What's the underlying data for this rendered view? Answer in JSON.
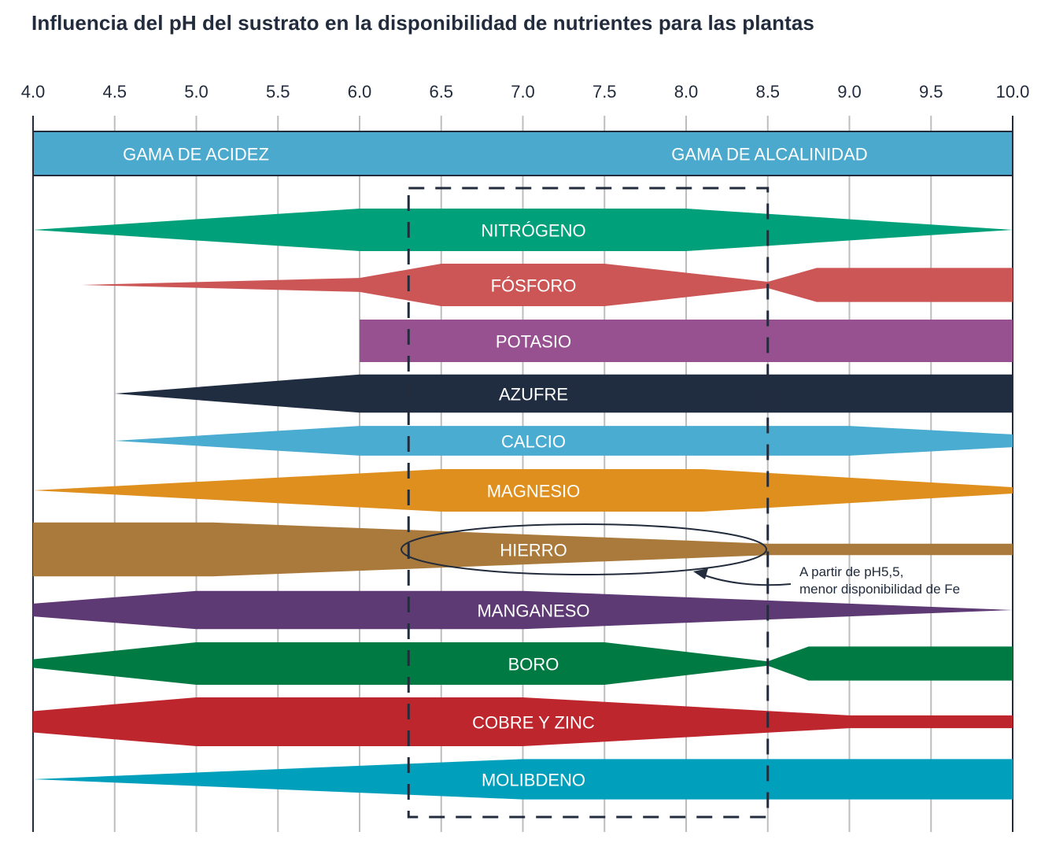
{
  "title": "Influencia del pH del sustrato en la disponibilidad de nutrientes para las plantas",
  "chart_data": {
    "type": "area",
    "xlabel": "",
    "ylabel": "",
    "xlim": [
      4.0,
      10.0
    ],
    "x_ticks": [
      "4.0",
      "4.5",
      "5.0",
      "5.5",
      "6.0",
      "6.5",
      "7.0",
      "7.5",
      "8.0",
      "8.5",
      "9.0",
      "9.5",
      "10.0"
    ],
    "grid": true,
    "ranges": [
      {
        "label": "GAMA DE ACIDEZ",
        "color": "#4aa9cc"
      },
      {
        "label": "GAMA DE ALCALINIDAD",
        "color": "#4aa9cc"
      }
    ],
    "optimal_range": [
      6.3,
      8.5
    ],
    "series": [
      {
        "name": "NITRÓGENO",
        "color": "#00a07a",
        "profile": [
          [
            4.0,
            0
          ],
          [
            6.0,
            1
          ],
          [
            8.0,
            1
          ],
          [
            10.0,
            0
          ]
        ]
      },
      {
        "name": "FÓSFORO",
        "color": "#cc5555",
        "profile": [
          [
            4.3,
            0
          ],
          [
            6.0,
            0.33
          ],
          [
            6.5,
            1
          ],
          [
            7.5,
            1
          ],
          [
            8.5,
            0.15
          ],
          [
            8.8,
            0.8
          ],
          [
            10.0,
            0.8
          ]
        ]
      },
      {
        "name": "POTASIO",
        "color": "#985190",
        "profile": [
          [
            6.0,
            1
          ],
          [
            10.0,
            1
          ]
        ]
      },
      {
        "name": "AZUFRE",
        "color": "#202c40",
        "profile": [
          [
            4.5,
            0
          ],
          [
            6.0,
            0.9
          ],
          [
            10.0,
            0.9
          ]
        ]
      },
      {
        "name": "CALCIO",
        "color": "#4aacd0",
        "profile": [
          [
            4.5,
            0
          ],
          [
            6.0,
            0.7
          ],
          [
            9.0,
            0.7
          ],
          [
            10.0,
            0.3
          ]
        ]
      },
      {
        "name": "MAGNESIO",
        "color": "#df8f1e",
        "profile": [
          [
            4.0,
            0
          ],
          [
            6.5,
            1
          ],
          [
            8.1,
            1
          ],
          [
            10.0,
            0.15
          ]
        ]
      },
      {
        "name": "HIERRO",
        "color": "#aa7a3c",
        "profile": [
          [
            4.0,
            1.27
          ],
          [
            5.1,
            1.27
          ],
          [
            8.5,
            0.27
          ],
          [
            10.0,
            0.27
          ]
        ]
      },
      {
        "name": "MANGANESO",
        "color": "#5e3a75",
        "profile": [
          [
            4.0,
            0.3
          ],
          [
            5.0,
            0.9
          ],
          [
            7.0,
            0.9
          ],
          [
            10.0,
            0
          ]
        ]
      },
      {
        "name": "BORO",
        "color": "#007a43",
        "profile": [
          [
            4.0,
            0.2
          ],
          [
            5.0,
            1
          ],
          [
            7.5,
            1
          ],
          [
            8.5,
            0.1
          ],
          [
            8.75,
            0.8
          ],
          [
            10.0,
            0.8
          ]
        ]
      },
      {
        "name": "COBRE Y ZINC",
        "color": "#be262d",
        "profile": [
          [
            4.0,
            0.5
          ],
          [
            5.0,
            1.15
          ],
          [
            7.0,
            1.15
          ],
          [
            9.0,
            0.3
          ],
          [
            10.0,
            0.3
          ]
        ]
      },
      {
        "name": "MOLIBDENO",
        "color": "#00a0bd",
        "profile": [
          [
            4.0,
            0
          ],
          [
            7.0,
            0.95
          ],
          [
            10.0,
            0.95
          ]
        ]
      }
    ],
    "annotation": "A partir de pH5,5,\nmenor disponibilidad de Fe"
  },
  "annotation_lines": [
    "A partir de pH5,5,",
    "menor disponibilidad de Fe"
  ]
}
